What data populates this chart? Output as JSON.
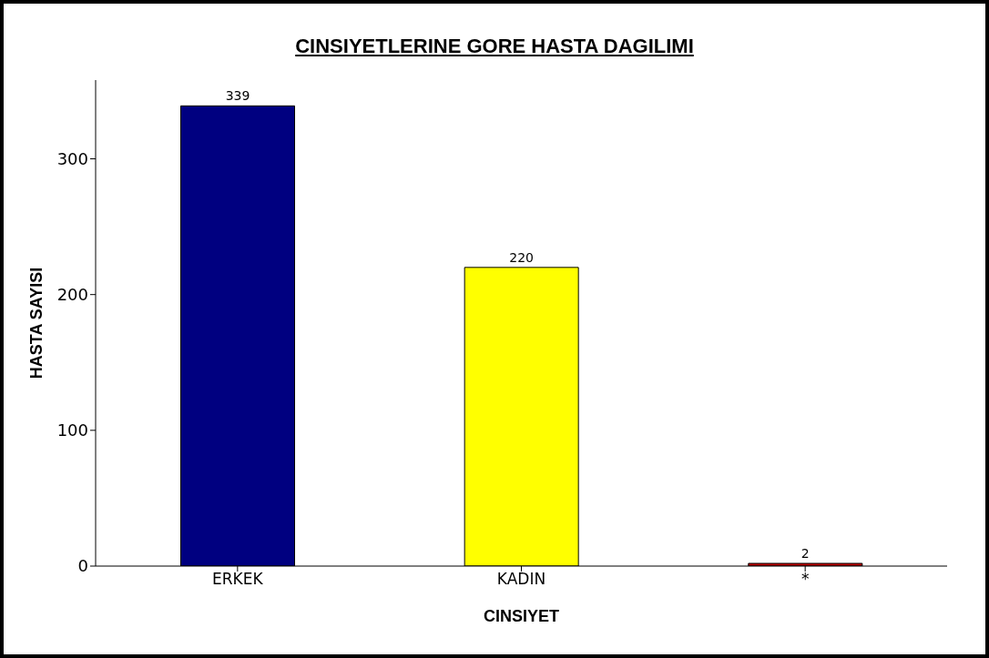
{
  "chart_data": {
    "type": "bar",
    "title": "CINSIYETLERINE GORE HASTA DAGILIMI",
    "xlabel": "CINSIYET",
    "ylabel": "HASTA SAYISI",
    "categories": [
      "ERKEK",
      "KADIN",
      "*"
    ],
    "values": [
      339,
      220,
      2
    ],
    "colors": [
      "#000080",
      "#ffff00",
      "#c00000"
    ],
    "ylim": [
      0,
      358
    ],
    "yticks": [
      0,
      100,
      200,
      300
    ],
    "data_labels": true
  }
}
